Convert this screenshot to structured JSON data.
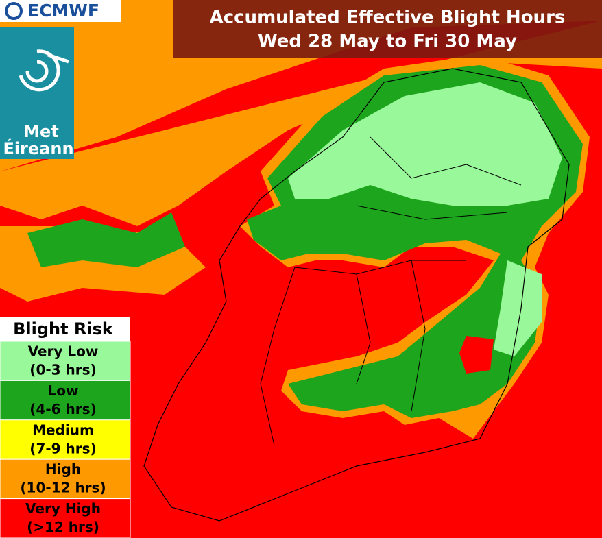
{
  "header": {
    "logo": "ECMWF",
    "title_line1": "Accumulated Effective Blight Hours",
    "title_line2": "Wed 28 May to Fri 30 May"
  },
  "met_logo": {
    "line1": "Met",
    "line2": "Éireann"
  },
  "legend": {
    "title": "Blight Risk",
    "items": [
      {
        "label": "Very Low",
        "range": "(0-3 hrs)",
        "color": "#99f899"
      },
      {
        "label": "Low",
        "range": "(4-6 hrs)",
        "color": "#1ea51e"
      },
      {
        "label": "Medium",
        "range": "(7-9 hrs)",
        "color": "#ffff00"
      },
      {
        "label": "High",
        "range": "(10-12 hrs)",
        "color": "#ff9900"
      },
      {
        "label": "Very High",
        "range": "(>12 hrs)",
        "color": "#ff0000"
      }
    ]
  }
}
